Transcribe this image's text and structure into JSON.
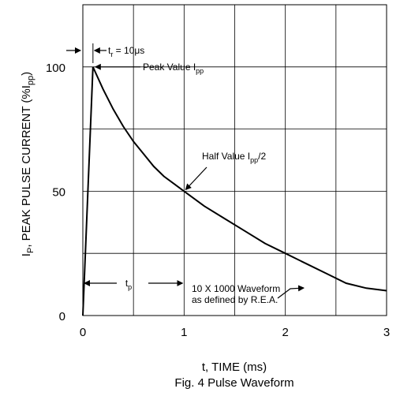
{
  "chart_data": {
    "type": "line",
    "title": "Fig. 4  Pulse Waveform",
    "xlabel": "t, TIME (ms)",
    "ylabel_parts": {
      "pre": "I",
      "pre_sub": "P",
      "mid": ", PEAK PULSE CURRENT (%I",
      "mid_sub": "pp",
      "post": ")"
    },
    "xlim": [
      0,
      3
    ],
    "ylim": [
      0,
      125
    ],
    "x_ticks": [
      0,
      1,
      2,
      3
    ],
    "x_tick_labels": [
      "0",
      "1",
      "2",
      "3"
    ],
    "y_ticks": [
      0,
      50,
      100
    ],
    "y_tick_labels": [
      "0",
      "50",
      "100"
    ],
    "grid": true,
    "grid_x": [
      0.5,
      1,
      1.5,
      2,
      2.5
    ],
    "grid_y": [
      25,
      50,
      75,
      100
    ],
    "series": [
      {
        "x": [
          0,
          0.1,
          0.2,
          0.3,
          0.4,
          0.5,
          0.6,
          0.7,
          0.8,
          0.9,
          1.0,
          1.2,
          1.4,
          1.6,
          1.8,
          2.0,
          2.2,
          2.4,
          2.6,
          2.8,
          3.0
        ],
        "y": [
          0,
          100,
          91,
          83,
          76,
          70,
          65,
          60,
          56,
          53,
          50,
          44,
          39,
          34,
          29,
          25,
          21,
          17,
          13,
          11,
          10
        ]
      }
    ],
    "annotations": {
      "tr": {
        "pre": "t",
        "sub": "r",
        "post": " = 10μs"
      },
      "peak": {
        "pre": "Peak Value I",
        "sub": "pp",
        "post": ""
      },
      "half": {
        "pre": "Half Value I",
        "sub": "pp",
        "post": "/2"
      },
      "tp": {
        "pre": "t",
        "sub": "p",
        "post": ""
      },
      "waveform_line1": "10 X 1000 Waveform",
      "waveform_line2": "as defined by R.E.A."
    }
  }
}
